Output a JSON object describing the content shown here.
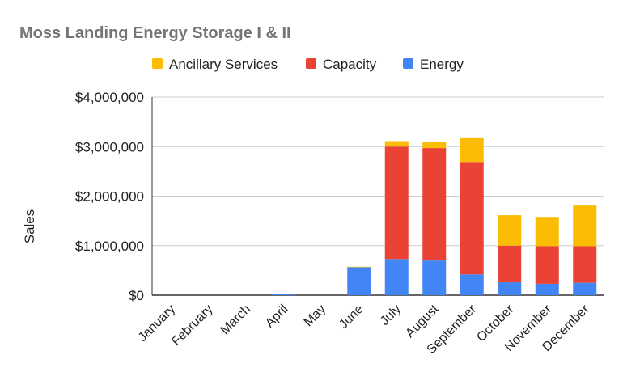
{
  "chart_data": {
    "type": "bar",
    "stacked": true,
    "title": "Moss Landing Energy Storage I & II",
    "xlabel": "",
    "ylabel": "Sales",
    "ylim": [
      0,
      4000000
    ],
    "yticks": [
      0,
      1000000,
      2000000,
      3000000,
      4000000
    ],
    "ytick_labels": [
      "$0",
      "$1,000,000",
      "$2,000,000",
      "$3,000,000",
      "$4,000,000"
    ],
    "grid": true,
    "legend_position": "top",
    "categories": [
      "January",
      "February",
      "March",
      "April",
      "May",
      "June",
      "July",
      "August",
      "September",
      "October",
      "November",
      "December"
    ],
    "series": [
      {
        "name": "Energy",
        "color": "#4285f4",
        "values": [
          0,
          0,
          0,
          20000,
          0,
          565000,
          730000,
          700000,
          420000,
          260000,
          230000,
          250000
        ]
      },
      {
        "name": "Capacity",
        "color": "#ea4335",
        "values": [
          0,
          0,
          0,
          0,
          0,
          0,
          2270000,
          2270000,
          2270000,
          740000,
          760000,
          740000
        ]
      },
      {
        "name": "Ancillary Services",
        "color": "#fbbc04",
        "values": [
          0,
          0,
          0,
          0,
          0,
          10000,
          110000,
          120000,
          480000,
          615000,
          590000,
          820000
        ]
      }
    ],
    "legend_order": [
      "Ancillary Services",
      "Capacity",
      "Energy"
    ]
  }
}
